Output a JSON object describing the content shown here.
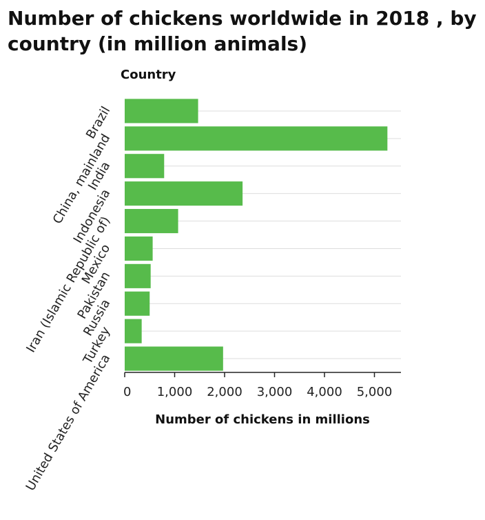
{
  "chart_data": {
    "type": "bar",
    "orientation": "horizontal",
    "title": "Number of chickens worldwide in 2018 , by country (in million animals)",
    "ylabel": "Country",
    "xlabel": "Number of chickens in millions",
    "categories": [
      "Brazil",
      "China, mainland",
      "India",
      "Indonesia",
      "Iran (Islamic Republic of)",
      "Mexico",
      "Pakistan",
      "Russia",
      "Turkey",
      "United States of America"
    ],
    "values": [
      1470,
      5260,
      790,
      2360,
      1070,
      560,
      520,
      500,
      340,
      1970
    ],
    "xlim": [
      0,
      5500
    ],
    "xticks": [
      0,
      1000,
      2000,
      3000,
      4000,
      5000
    ],
    "xtick_labels": [
      "0",
      "1,000",
      "2,000",
      "3,000",
      "4,000",
      "5,000"
    ],
    "bar_color": "#57bb4b",
    "grid_color": "#dddddd",
    "grid": true
  }
}
